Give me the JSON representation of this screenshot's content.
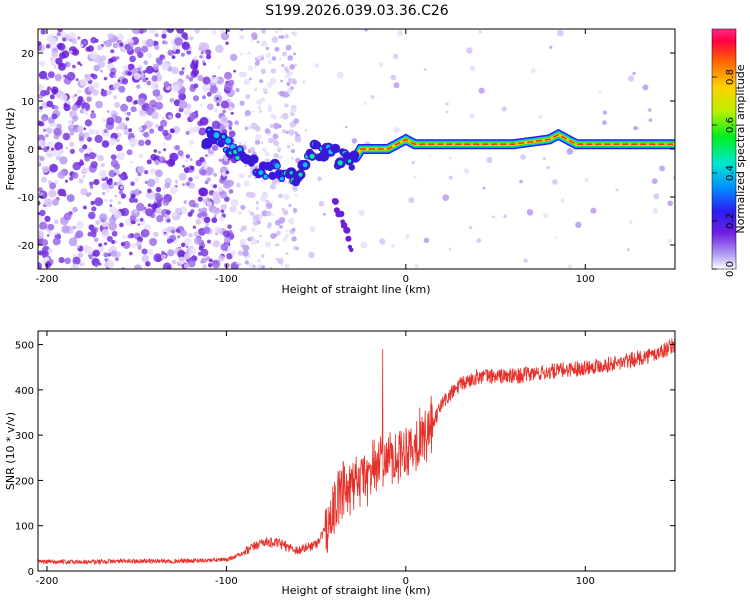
{
  "title": "S199.2026.039.03.36.C26",
  "chart_data": [
    {
      "type": "heatmap",
      "name": "spectrogram",
      "xlabel": "Height of straight line (km)",
      "ylabel": "Frequency (Hz)",
      "xlim": [
        -205,
        150
      ],
      "ylim": [
        -25,
        25
      ],
      "xticks": [
        -200,
        -100,
        0,
        100
      ],
      "xtick_labels": [
        "-200",
        "-100",
        "0",
        "100"
      ],
      "yticks": [
        20,
        10,
        0,
        -10,
        -20
      ],
      "ytick_labels": [
        "20",
        "10",
        "0",
        "-10",
        "-20"
      ],
      "ridge": {
        "x": [
          -110,
          -100,
          -90,
          -80,
          -72,
          -65,
          -58,
          -52,
          -47,
          -42,
          -38,
          -34,
          -30,
          -25,
          -20,
          -10,
          -5,
          0,
          5,
          10,
          20,
          40,
          60,
          80,
          85,
          90,
          95,
          100,
          120,
          150
        ],
        "y": [
          3,
          1,
          -2,
          -5,
          -4,
          -6,
          -5,
          0,
          -1,
          1,
          -2,
          -1,
          -3,
          0,
          0,
          0,
          1,
          2,
          1,
          1,
          1,
          1,
          1,
          2,
          3,
          2,
          1,
          1,
          1,
          1
        ]
      },
      "colorbar": {
        "label": "Normalized spectral amplitude",
        "range": [
          0,
          1
        ],
        "ticks": [
          0.0,
          0.2,
          0.4,
          0.6,
          0.8
        ],
        "tick_labels": [
          "0.0",
          "0.2",
          "0.4",
          "0.6",
          "0.8"
        ]
      }
    },
    {
      "type": "line",
      "name": "snr",
      "xlabel": "Height of straight line (km)",
      "ylabel": "SNR (10 * v/v)",
      "xlim": [
        -205,
        150
      ],
      "ylim": [
        0,
        530
      ],
      "xticks": [
        -200,
        -100,
        0,
        100
      ],
      "xtick_labels": [
        "-200",
        "-100",
        "0",
        "100"
      ],
      "yticks": [
        0,
        100,
        200,
        300,
        400,
        500
      ],
      "ytick_labels": [
        "0",
        "100",
        "200",
        "300",
        "400",
        "500"
      ],
      "color": "#e8302a",
      "x": [
        -205,
        -180,
        -150,
        -120,
        -100,
        -90,
        -80,
        -70,
        -60,
        -50,
        -45,
        -40,
        -35,
        -30,
        -25,
        -20,
        -15,
        -10,
        -5,
        0,
        5,
        10,
        15,
        20,
        25,
        30,
        40,
        60,
        80,
        100,
        120,
        140,
        150
      ],
      "y": [
        20,
        20,
        22,
        22,
        25,
        40,
        65,
        60,
        45,
        60,
        90,
        140,
        170,
        180,
        200,
        220,
        240,
        250,
        260,
        270,
        280,
        300,
        320,
        370,
        390,
        410,
        430,
        430,
        440,
        450,
        460,
        480,
        500
      ]
    }
  ]
}
